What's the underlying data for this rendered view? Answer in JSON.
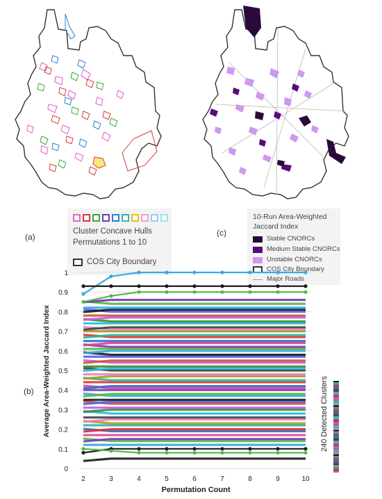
{
  "panels": {
    "a": {
      "label": "(a)"
    },
    "b": {
      "label": "(b)"
    },
    "c": {
      "label": "(c)"
    }
  },
  "legend_a": {
    "hull_colors": [
      "#e066c8",
      "#d63a3a",
      "#3aa83a",
      "#6a3fb0",
      "#2a7fd4",
      "#30b0c0",
      "#e0c020",
      "#f0a0c0",
      "#90d0f0",
      "#a0e0e0"
    ],
    "line1": "Cluster Concave Hulls",
    "line2": "Permutations 1 to 10",
    "boundary_label": "COS City Boundary"
  },
  "legend_c": {
    "title_line1": "10-Run Area-Weighted",
    "title_line2": "Jaccard Index",
    "items": [
      {
        "label": "Stable CNORCs",
        "color": "#2a0a3a"
      },
      {
        "label": "Medium Stable CNORCs",
        "color": "#5a0a7a"
      },
      {
        "label": "Unstable CNORCs",
        "color": "#cc99ee"
      }
    ],
    "boundary_label": "COS City Boundary",
    "roads_label": "Major Roads"
  },
  "side_label": "240 Detected Clusters",
  "chart_data": {
    "type": "line",
    "xlabel": "Permutation Count",
    "ylabel": "Average Area-Weighted Jaccard Index",
    "x": [
      2,
      3,
      4,
      5,
      6,
      7,
      8,
      9,
      10
    ],
    "xlim": [
      2,
      10
    ],
    "ylim": [
      0,
      1
    ],
    "yticks": [
      0,
      0.1,
      0.2,
      0.3,
      0.4,
      0.5,
      0.6,
      0.7,
      0.8,
      0.9,
      1
    ],
    "ytick_labels": [
      "0",
      "0.1",
      "0.2",
      "0.3",
      "0.4",
      "0.5",
      "0.6",
      "0.7",
      "0.8",
      "0.9",
      "1"
    ],
    "grid": true,
    "highlight_series": [
      {
        "color": "#3aa9e0",
        "values": [
          0.89,
          0.98,
          1.0,
          1.0,
          1.0,
          1.0,
          1.0,
          1.0,
          1.0
        ]
      },
      {
        "color": "#1a1a1a",
        "values": [
          0.93,
          0.93,
          0.93,
          0.93,
          0.93,
          0.93,
          0.93,
          0.93,
          0.93
        ]
      },
      {
        "color": "#52b848",
        "values": [
          0.85,
          0.88,
          0.9,
          0.9,
          0.9,
          0.9,
          0.9,
          0.9,
          0.9
        ]
      },
      {
        "color": "#1a1a1a",
        "values": [
          0.08,
          0.1,
          0.1,
          0.1,
          0.1,
          0.1,
          0.1,
          0.1,
          0.1
        ]
      },
      {
        "color": "#52b848",
        "values": [
          0.1,
          0.09,
          0.08,
          0.08,
          0.08,
          0.08,
          0.08,
          0.08,
          0.08
        ]
      }
    ],
    "bundle_levels": [
      0.05,
      0.12,
      0.14,
      0.15,
      0.17,
      0.19,
      0.2,
      0.22,
      0.23,
      0.25,
      0.26,
      0.28,
      0.3,
      0.31,
      0.33,
      0.34,
      0.35,
      0.37,
      0.38,
      0.4,
      0.41,
      0.42,
      0.44,
      0.45,
      0.47,
      0.48,
      0.5,
      0.51,
      0.52,
      0.54,
      0.55,
      0.57,
      0.58,
      0.6,
      0.61,
      0.62,
      0.64,
      0.65,
      0.67,
      0.68,
      0.7,
      0.71,
      0.72,
      0.74,
      0.75,
      0.77,
      0.78,
      0.8,
      0.81,
      0.82,
      0.84,
      0.86
    ],
    "bundle_colors": [
      "#1a1a1a",
      "#3aa9e0",
      "#52b848",
      "#7a3aa8",
      "#e0409a",
      "#2a6ad0",
      "#e0302a",
      "#30b0a0",
      "#a0a020",
      "#f080c0",
      "#404040",
      "#20c0d0",
      "#3a8a3a",
      "#c060e0",
      "#d05030",
      "#5060f0"
    ],
    "cluster_count": 240
  }
}
